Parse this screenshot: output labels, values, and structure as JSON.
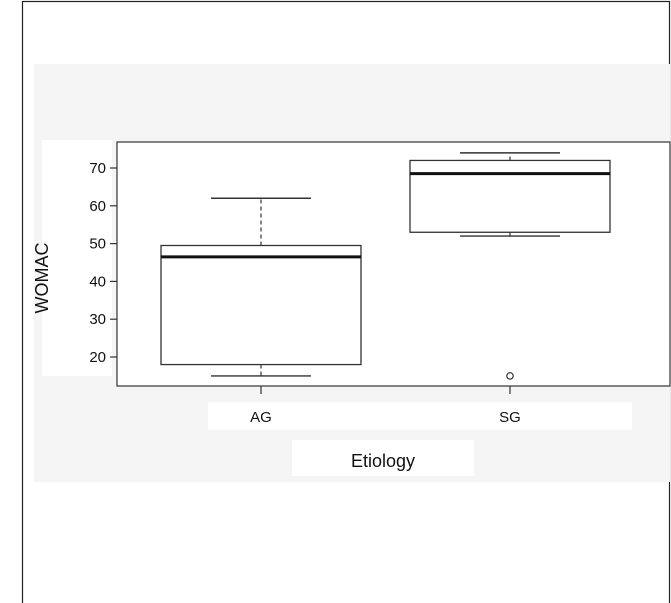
{
  "chart_data": {
    "type": "boxplot",
    "title": "",
    "xlabel": "Etiology",
    "ylabel": "WOMAC",
    "categories": [
      "AG",
      "SG"
    ],
    "yticks": [
      20,
      30,
      40,
      50,
      60,
      70
    ],
    "ylim": [
      12,
      77
    ],
    "grid": false,
    "boxes": [
      {
        "category": "AG",
        "whisker_low": 15,
        "q1": 18,
        "median": 46.5,
        "q3": 49.5,
        "whisker_high": 62,
        "outliers": []
      },
      {
        "category": "SG",
        "whisker_low": 52,
        "q1": 53,
        "median": 68.5,
        "q3": 72,
        "whisker_high": 74,
        "outliers": [
          15
        ]
      }
    ]
  }
}
